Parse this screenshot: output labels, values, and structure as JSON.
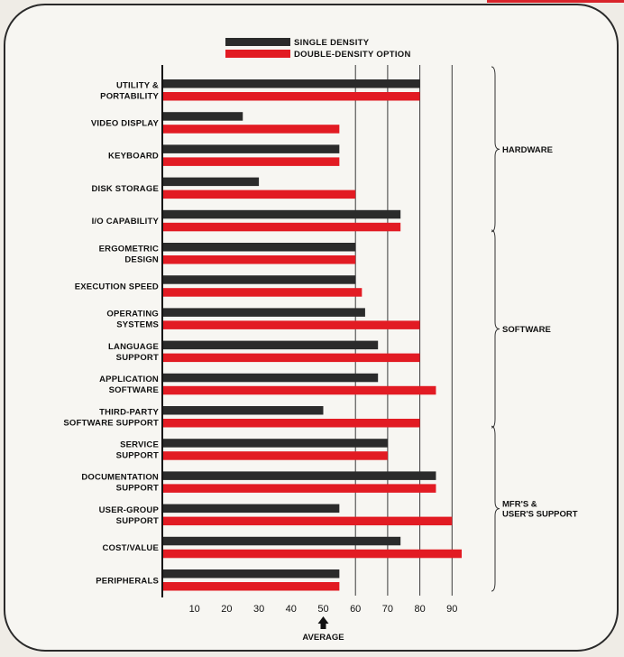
{
  "chart_data": {
    "type": "bar",
    "orientation": "horizontal",
    "categories": [
      [
        "UTILITY &",
        "PORTABILITY"
      ],
      [
        "VIDEO DISPLAY"
      ],
      [
        "KEYBOARD"
      ],
      [
        "DISK STORAGE"
      ],
      [
        "I/O CAPABILITY"
      ],
      [
        "ERGOMETRIC",
        "DESIGN"
      ],
      [
        "EXECUTION SPEED"
      ],
      [
        "OPERATING",
        "SYSTEMS"
      ],
      [
        "LANGUAGE",
        "SUPPORT"
      ],
      [
        "APPLICATION",
        "SOFTWARE"
      ],
      [
        "THIRD-PARTY",
        "SOFTWARE SUPPORT"
      ],
      [
        "SERVICE",
        "SUPPORT"
      ],
      [
        "DOCUMENTATION",
        "SUPPORT"
      ],
      [
        "USER-GROUP",
        "SUPPORT"
      ],
      [
        "COST/VALUE"
      ],
      [
        "PERIPHERALS"
      ]
    ],
    "series": [
      {
        "name": "SINGLE DENSITY",
        "color": "#2b2b2b",
        "values": [
          80,
          25,
          55,
          30,
          74,
          60,
          60,
          63,
          67,
          67,
          50,
          70,
          85,
          55,
          74,
          55
        ]
      },
      {
        "name": "DOUBLE-DENSITY OPTION",
        "color": "#e21b23",
        "values": [
          80,
          55,
          55,
          60,
          74,
          60,
          62,
          80,
          80,
          85,
          80,
          70,
          85,
          90,
          93,
          55
        ]
      }
    ],
    "xticks": [
      "10",
      "20",
      "30",
      "40",
      "50",
      "60",
      "70",
      "80",
      "90"
    ],
    "xlim": [
      0,
      100
    ],
    "gridlines": [
      60,
      70,
      80,
      90
    ],
    "average_marker": {
      "value": 50,
      "label": "AVERAGE"
    },
    "groups": [
      {
        "label": [
          "HARDWARE"
        ],
        "from": 0,
        "to": 4
      },
      {
        "label": [
          "SOFTWARE"
        ],
        "from": 5,
        "to": 10
      },
      {
        "label": [
          "MFR'S &",
          "USER'S SUPPORT"
        ],
        "from": 11,
        "to": 15
      }
    ],
    "legend_position": "top-center"
  }
}
